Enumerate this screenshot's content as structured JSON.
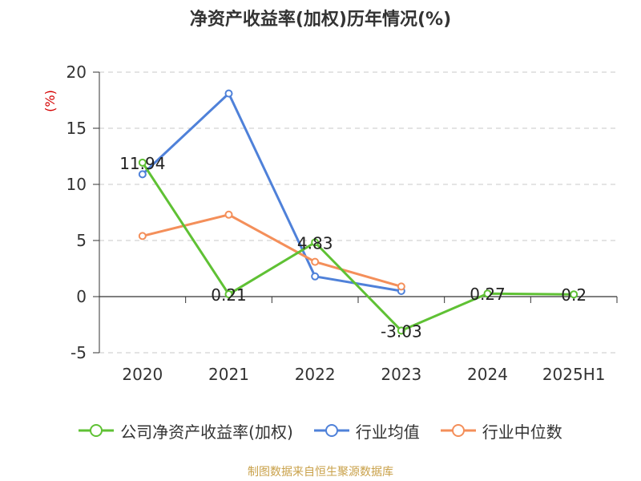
{
  "chart_data": {
    "type": "line",
    "title": "净资产收益率(加权)历年情况(%)",
    "ylabel": "(%)",
    "categories": [
      "2020",
      "2021",
      "2022",
      "2023",
      "2024",
      "2025H1"
    ],
    "ylim": [
      -5,
      20
    ],
    "yticks": [
      -5,
      0,
      5,
      10,
      15,
      20
    ],
    "grid": true,
    "legend_position": "bottom",
    "series": [
      {
        "name": "公司净资产收益率(加权)",
        "color": "#5fc134",
        "values": [
          11.94,
          0.21,
          4.83,
          -3.03,
          0.27,
          0.2
        ],
        "labels": [
          "11.94",
          "0.21",
          "4.83",
          "-3.03",
          "0.27",
          "0.2"
        ]
      },
      {
        "name": "行业均值",
        "color": "#4f81d9",
        "values": [
          10.9,
          18.1,
          1.8,
          0.5,
          null,
          null
        ]
      },
      {
        "name": "行业中位数",
        "color": "#f48f5a",
        "values": [
          5.4,
          7.3,
          3.1,
          0.9,
          null,
          null
        ]
      }
    ]
  },
  "source": "制图数据来自恒生聚源数据库"
}
